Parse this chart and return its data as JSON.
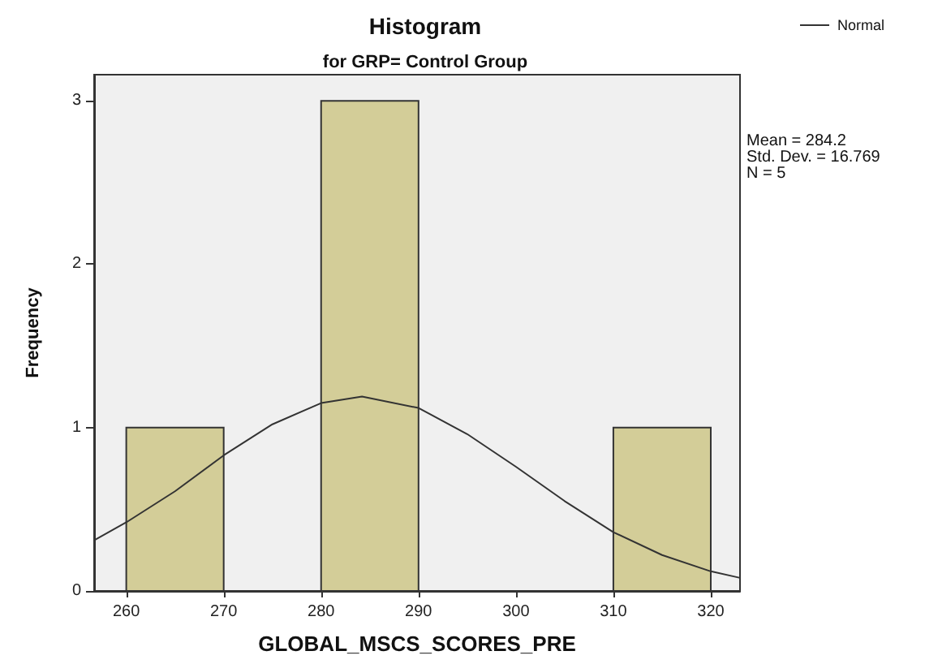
{
  "chart_data": {
    "type": "histogram",
    "title": "Histogram",
    "subtitle": "for GRP= Control Group",
    "xlabel": "GLOBAL_MSCS_SCORES_PRE",
    "ylabel": "Frequency",
    "bins": [
      260,
      270,
      280,
      290,
      300,
      310,
      320
    ],
    "xlim": [
      256.7,
      323
    ],
    "xticks": [
      260,
      270,
      280,
      290,
      300,
      310,
      320
    ],
    "ylim": [
      0,
      3.16
    ],
    "yticks": [
      0,
      1,
      2,
      3
    ],
    "series": [
      {
        "color": "#d3cd98",
        "values": [
          1,
          0,
          3,
          0,
          0,
          1
        ]
      },
      {
        "type": "line",
        "name": "Normal",
        "color": "#333333",
        "x": [
          256.7,
          260,
          265,
          270,
          275,
          280,
          284.2,
          290,
          295,
          300,
          305,
          310,
          315,
          320,
          323
        ],
        "values": [
          0.31,
          0.42,
          0.61,
          0.83,
          1.02,
          1.15,
          1.19,
          1.12,
          0.96,
          0.76,
          0.55,
          0.36,
          0.22,
          0.12,
          0.08
        ]
      }
    ],
    "legend": "top right",
    "grid": false,
    "marker": "none",
    "annotations": [
      "Mean = 284.2",
      "Std. Dev. = 16.769",
      "N = 5"
    ]
  }
}
